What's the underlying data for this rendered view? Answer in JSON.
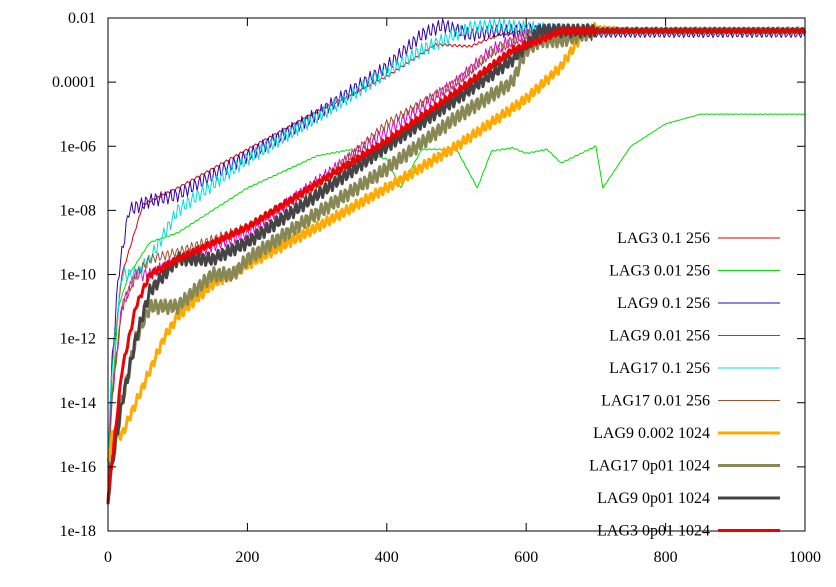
{
  "chart_data": {
    "type": "line",
    "title": "",
    "xlabel": "",
    "ylabel": "",
    "y_scale": "log",
    "xlim": [
      0,
      1000
    ],
    "ylim": [
      1e-18,
      0.01
    ],
    "x_ticks": [
      {
        "value": 0,
        "label": "0"
      },
      {
        "value": 200,
        "label": "200"
      },
      {
        "value": 400,
        "label": "400"
      },
      {
        "value": 600,
        "label": "600"
      },
      {
        "value": 800,
        "label": "800"
      },
      {
        "value": 1000,
        "label": "1000"
      }
    ],
    "y_ticks": [
      {
        "value": 0.01,
        "label": "0.01"
      },
      {
        "value": 0.0001,
        "label": "0.0001"
      },
      {
        "value": 1e-06,
        "label": "1e-06"
      },
      {
        "value": 1e-08,
        "label": "1e-08"
      },
      {
        "value": 1e-10,
        "label": "1e-10"
      },
      {
        "value": 1e-12,
        "label": "1e-12"
      },
      {
        "value": 1e-14,
        "label": "1e-14"
      },
      {
        "value": 1e-16,
        "label": "1e-16"
      },
      {
        "value": 1e-18,
        "label": "1e-18"
      }
    ],
    "legend_position": "right",
    "series": [
      {
        "name": "LAG3 0.1 256",
        "color": "#dd0000",
        "thick": false,
        "wiggle": 0.04,
        "x": [
          0,
          5,
          20,
          50,
          100,
          200,
          300,
          400,
          470,
          520,
          560,
          600,
          650,
          700,
          800,
          900,
          1000
        ],
        "y": [
          1e-17,
          1e-13,
          1e-10,
          1.5e-08,
          5e-08,
          8e-07,
          1.2e-05,
          0.00015,
          0.0015,
          0.0013,
          0.003,
          0.004,
          0.0045,
          0.004,
          0.004,
          0.004,
          0.004
        ]
      },
      {
        "name": "LAG3 0.01 256",
        "color": "#00dd00",
        "thick": false,
        "wiggle": 0.02,
        "x": [
          0,
          5,
          15,
          30,
          60,
          100,
          200,
          300,
          350,
          400,
          420,
          450,
          500,
          530,
          550,
          580,
          600,
          630,
          650,
          700,
          710,
          750,
          800,
          850,
          900,
          1000
        ],
        "y": [
          1e-16,
          1e-14,
          1e-11,
          1e-10,
          1e-09,
          2e-09,
          5e-08,
          5e-07,
          8e-07,
          4e-07,
          5e-08,
          8e-07,
          8e-07,
          5e-08,
          7e-07,
          9e-07,
          6e-07,
          8e-07,
          3e-07,
          1e-06,
          5e-08,
          1e-06,
          5e-06,
          1e-05,
          1e-05,
          1e-05
        ]
      },
      {
        "name": "LAG9 0.1 256",
        "color": "#3300aa",
        "thick": false,
        "wiggle": 0.22,
        "x": [
          0,
          5,
          15,
          30,
          60,
          100,
          200,
          300,
          400,
          450,
          480,
          520,
          560,
          600,
          650,
          700,
          800,
          1000
        ],
        "y": [
          1e-16,
          1e-13,
          1e-10,
          1e-08,
          2e-08,
          3e-08,
          5e-07,
          1e-05,
          0.0003,
          0.003,
          0.006,
          0.003,
          0.004,
          0.004,
          0.004,
          0.003,
          0.003,
          0.003
        ]
      },
      {
        "name": "LAG9 0.01 256",
        "color": "#dd00dd",
        "thick": false,
        "wiggle": 0.2,
        "x": [
          0,
          5,
          20,
          40,
          60,
          100,
          200,
          300,
          400,
          500,
          550,
          600,
          650,
          700,
          800,
          1000
        ],
        "y": [
          1e-17,
          1e-14,
          1e-11,
          1e-10,
          1e-10,
          3e-10,
          2e-09,
          8e-08,
          3e-06,
          0.0001,
          0.001,
          0.003,
          0.004,
          0.004,
          0.004,
          0.004
        ]
      },
      {
        "name": "LAG17 0.1 256",
        "color": "#00dddd",
        "thick": false,
        "wiggle": 0.22,
        "x": [
          0,
          5,
          20,
          40,
          60,
          100,
          200,
          300,
          400,
          450,
          520,
          560,
          600,
          650,
          700,
          800,
          1000
        ],
        "y": [
          1e-16,
          1e-13,
          1e-10,
          1e-10,
          3e-10,
          1e-08,
          4e-07,
          8e-06,
          0.0002,
          0.001,
          0.005,
          0.006,
          0.005,
          0.004,
          0.004,
          0.004,
          0.004
        ]
      },
      {
        "name": "LAG17 0.01 256",
        "color": "#a0522d",
        "thick": false,
        "wiggle": 0.15,
        "x": [
          0,
          5,
          20,
          40,
          60,
          100,
          200,
          300,
          400,
          500,
          550,
          600,
          650,
          700,
          800,
          1000
        ],
        "y": [
          1e-17,
          1e-14,
          1e-11,
          1e-10,
          3e-10,
          5e-10,
          3e-09,
          6e-08,
          5e-06,
          0.0001,
          0.0008,
          0.003,
          0.004,
          0.004,
          0.004,
          0.004
        ]
      },
      {
        "name": "LAG9 0.002 1024",
        "color": "#ffaa00",
        "thick": true,
        "wiggle": 0.16,
        "x": [
          0,
          5,
          20,
          40,
          60,
          80,
          100,
          150,
          200,
          300,
          400,
          500,
          600,
          650,
          680,
          700,
          750,
          800,
          900,
          1000
        ],
        "y": [
          1e-16,
          1e-15,
          1e-15,
          1e-14,
          1e-13,
          1e-12,
          5e-12,
          5e-11,
          2e-10,
          3e-09,
          5e-08,
          1e-06,
          3e-05,
          0.0003,
          0.003,
          0.005,
          0.004,
          0.004,
          0.004,
          0.004
        ]
      },
      {
        "name": "LAG17 0p01 1024",
        "color": "#888855",
        "thick": true,
        "wiggle": 0.22,
        "x": [
          0,
          5,
          20,
          40,
          60,
          100,
          150,
          180,
          200,
          300,
          400,
          500,
          580,
          600,
          620,
          650,
          700,
          750,
          800,
          1000
        ],
        "y": [
          1e-17,
          1e-16,
          1e-14,
          1e-12,
          1e-11,
          1e-11,
          1e-10,
          1e-10,
          3e-10,
          8e-09,
          2e-07,
          8e-06,
          0.0001,
          0.001,
          0.002,
          0.002,
          0.004,
          0.004,
          0.004,
          0.004
        ]
      },
      {
        "name": "LAG9 0p01 1024",
        "color": "#444444",
        "thick": true,
        "wiggle": 0.2,
        "x": [
          0,
          5,
          20,
          40,
          60,
          100,
          150,
          200,
          300,
          400,
          500,
          580,
          620,
          650,
          700,
          800,
          1000
        ],
        "y": [
          1e-17,
          1e-16,
          1e-14,
          1e-12,
          3e-11,
          3e-10,
          3e-10,
          1e-09,
          3e-08,
          1e-06,
          3e-05,
          0.0005,
          0.004,
          0.004,
          0.004,
          0.004,
          0.004
        ]
      },
      {
        "name": "LAG3 0p01 1024",
        "color": "#ee0000",
        "thick": true,
        "wiggle": 0.1,
        "x": [
          0,
          5,
          20,
          40,
          60,
          100,
          200,
          300,
          400,
          500,
          580,
          620,
          650,
          700,
          800,
          1000
        ],
        "y": [
          1e-17,
          1e-16,
          1e-13,
          1e-11,
          1e-10,
          3e-10,
          3e-09,
          7e-08,
          1.5e-06,
          5e-05,
          0.001,
          0.002,
          0.004,
          0.004,
          0.004,
          0.004
        ]
      }
    ]
  }
}
